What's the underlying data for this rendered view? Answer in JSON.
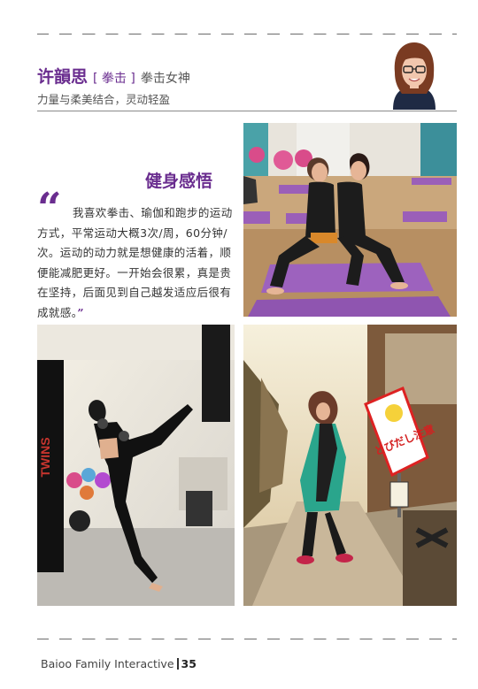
{
  "profile": {
    "name": "许韻思",
    "tag": "[ 拳击 ]",
    "title": "拳击女神",
    "tagline": "力量与柔美结合，灵动轻盈"
  },
  "section": {
    "title": "健身感悟",
    "quote_open": "“",
    "quote": "我喜欢拳击、瑜伽和跑步的运动方式，平常运动大概3次/周，60分钟/次。运动的动力就是想健康的活着，顺便能减肥更好。一开始会很累，真是贵在坚持，后面见到自己越发适应后很有成就感。",
    "quote_close": "”"
  },
  "photos": {
    "sign_text": "とびだし注意",
    "bag_text": "TWINS"
  },
  "footer": {
    "publication": "Baioo Family Interactive",
    "page_number": "35"
  },
  "colors": {
    "accent": "#6a2d8f"
  }
}
